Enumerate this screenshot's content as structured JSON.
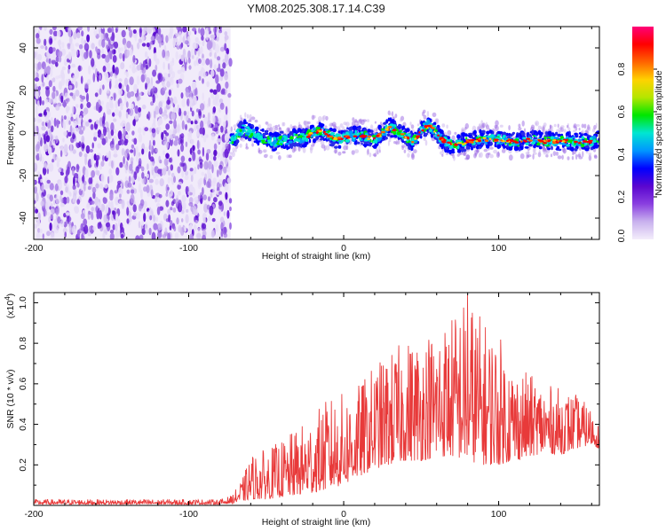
{
  "chart_data": [
    {
      "type": "heatmap",
      "title": "YM08.2025.308.17.14.C39",
      "xlabel": "Height of straight line (km)",
      "ylabel": "Frequency (Hz)",
      "xlim": [
        -200,
        165
      ],
      "ylim": [
        -50,
        50
      ],
      "xticks": [
        -200,
        -100,
        0,
        100
      ],
      "yticks": [
        -40,
        -20,
        0,
        20,
        40
      ],
      "noise_region_x": [
        -200,
        -73
      ],
      "signal_track": {
        "x": [
          -73,
          -65,
          -55,
          -45,
          -35,
          -25,
          -20,
          -15,
          -10,
          -5,
          0,
          10,
          20,
          25,
          30,
          40,
          45,
          50,
          55,
          60,
          65,
          70,
          80,
          90,
          100,
          110,
          120,
          130,
          140,
          150,
          160,
          165
        ],
        "y": [
          -4,
          2,
          -2,
          -4,
          -3,
          -2,
          0,
          1,
          -1,
          -3,
          -2,
          -1,
          -3,
          0,
          3,
          -2,
          -4,
          1,
          4,
          0,
          -4,
          -6,
          -4,
          -3,
          -3,
          -4,
          -3,
          -4,
          -4,
          -4,
          -4,
          -3
        ]
      },
      "colorbar": {
        "label": "Normalized spectral amplitude",
        "range": [
          0,
          1
        ],
        "ticks": [
          "0.2",
          "0.4",
          "0.6",
          "0.8"
        ],
        "bottom_label": "0.0",
        "colors": [
          "#f4eefb",
          "#c9b2ee",
          "#8a3fe0",
          "#5a06cf",
          "#0000ff",
          "#0096ff",
          "#00e6d2",
          "#00e600",
          "#b4e600",
          "#ffd200",
          "#ff6400",
          "#ff0000",
          "#ff0078"
        ]
      }
    },
    {
      "type": "line",
      "xlabel": "Height of straight line (km)",
      "ylabel": "SNR (10 * v/v)",
      "multiplier_label": "(x10",
      "multiplier_exp": "4",
      "multiplier_close": ")",
      "xlim": [
        -200,
        165
      ],
      "ylim": [
        0,
        1.05
      ],
      "xticks": [
        -200,
        -100,
        0,
        100
      ],
      "yticks": [
        0.2,
        0.4,
        0.6,
        0.8,
        1.0
      ],
      "ytick_labels": [
        "0.2",
        "0.4",
        "0.6",
        "0.8",
        "1.0"
      ],
      "series": [
        {
          "name": "SNR",
          "color": "#e83a3a",
          "envelope_x": [
            -200,
            -80,
            -72,
            -65,
            -60,
            -50,
            -40,
            -30,
            -20,
            -10,
            0,
            10,
            20,
            30,
            40,
            50,
            60,
            70,
            80,
            90,
            100,
            110,
            120,
            130,
            140,
            150,
            160,
            165
          ],
          "envelope_lo": [
            0.005,
            0.005,
            0.01,
            0.02,
            0.03,
            0.03,
            0.04,
            0.05,
            0.06,
            0.08,
            0.1,
            0.14,
            0.18,
            0.2,
            0.22,
            0.22,
            0.24,
            0.24,
            0.22,
            0.2,
            0.2,
            0.22,
            0.24,
            0.26,
            0.25,
            0.28,
            0.3,
            0.28
          ],
          "envelope_hi": [
            0.03,
            0.03,
            0.05,
            0.14,
            0.25,
            0.28,
            0.32,
            0.38,
            0.45,
            0.53,
            0.56,
            0.6,
            0.7,
            0.76,
            0.82,
            0.85,
            0.9,
            0.95,
            1.05,
            0.92,
            0.85,
            0.7,
            0.65,
            0.6,
            0.58,
            0.55,
            0.48,
            0.4
          ],
          "peak": {
            "x": 80,
            "y": 1.04
          }
        }
      ]
    }
  ]
}
